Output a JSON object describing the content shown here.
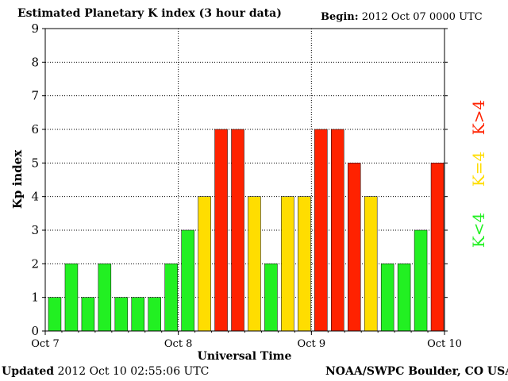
{
  "header": {
    "title": "Estimated Planetary K index (3 hour data)",
    "begin_label": "Begin:",
    "begin_value": "2012 Oct 07 0000 UTC"
  },
  "footer": {
    "updated_label": "Updated",
    "updated_value": "2012 Oct 10 02:55:06 UTC",
    "credit": "NOAA/SWPC Boulder, CO USA"
  },
  "colors": {
    "low": "#22f022",
    "moderate": "#ffdd00",
    "high": "#ff2200",
    "axis": "#000000",
    "grid": "#000000"
  },
  "chart_data": {
    "type": "bar",
    "title": "Estimated Planetary K index (3 hour data)",
    "xlabel": "Universal Time",
    "ylabel": "Kp index",
    "ylim": [
      0,
      9
    ],
    "yticks": [
      "0",
      "1",
      "2",
      "3",
      "4",
      "5",
      "6",
      "7",
      "8",
      "9"
    ],
    "xticks": [
      "Oct 7",
      "Oct 8",
      "Oct 9",
      "Oct 10"
    ],
    "interval_hours": 3,
    "grid": true,
    "values": [
      1,
      2,
      1,
      2,
      1,
      1,
      1,
      2,
      3,
      4,
      6,
      6,
      4,
      2,
      4,
      4,
      6,
      6,
      5,
      4,
      2,
      2,
      3,
      5
    ],
    "legend": [
      {
        "label": "K<4",
        "color": "#22f022"
      },
      {
        "label": "K=4",
        "color": "#ffdd00"
      },
      {
        "label": "K>4",
        "color": "#ff2200"
      }
    ]
  }
}
